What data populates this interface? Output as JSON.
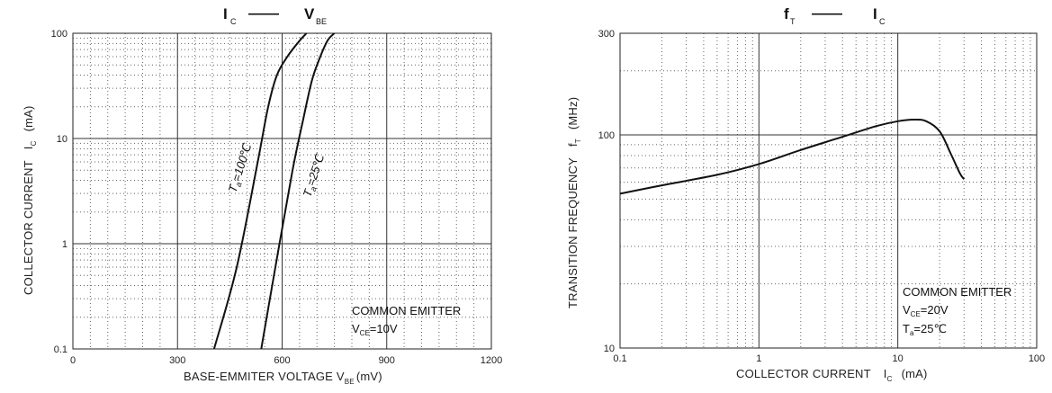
{
  "chart_data": [
    {
      "type": "line",
      "title": {
        "main": "I",
        "main_sub": "C",
        "dash": "——",
        "right": "V",
        "right_sub": "BE"
      },
      "xlabel": {
        "text": "BASE-EMMITER VOLTAGE V",
        "sub": "BE",
        "unit": "(mV)"
      },
      "ylabel": {
        "text": "COLLECTOR CURRENT",
        "sym": "I",
        "sym_sub": "C",
        "unit": "(mA)"
      },
      "xscale": "linear",
      "yscale": "log",
      "xlim": [
        0,
        1200
      ],
      "ylim": [
        0.1,
        100
      ],
      "xticks": [
        0,
        300,
        600,
        900,
        1200
      ],
      "xtick_labels": [
        "0",
        "300",
        "600",
        "900",
        "1200"
      ],
      "yticks": [
        0.1,
        1,
        10,
        100
      ],
      "ytick_labels": [
        "0.1",
        "1",
        "10",
        "100"
      ],
      "grid": true,
      "series": [
        {
          "name": "Ta=100℃",
          "label_main": "T",
          "label_sub": "a",
          "label_rest": "=100℃",
          "x": [
            405,
            470,
            530,
            560,
            585,
            615,
            650,
            670
          ],
          "y": [
            0.1,
            0.6,
            6,
            20,
            40,
            60,
            85,
            100
          ]
        },
        {
          "name": "Ta=25℃",
          "label_main": "T",
          "label_sub": "a",
          "label_rest": "=25℃",
          "x": [
            540,
            590,
            630,
            660,
            685,
            705,
            730,
            750
          ],
          "y": [
            0.1,
            0.9,
            5,
            15,
            35,
            55,
            85,
            100
          ]
        }
      ],
      "annotation": {
        "line1": "COMMON EMITTER",
        "line2_main": "V",
        "line2_sub": "CE",
        "line2_rest": "=10V"
      }
    },
    {
      "type": "line",
      "title": {
        "main": "f",
        "main_sub": "T",
        "dash": "——",
        "right": "I",
        "right_sub": "C"
      },
      "xlabel": {
        "text": "COLLECTOR CURRENT",
        "sym": "I",
        "sym_sub": "C",
        "unit": "(mA)"
      },
      "ylabel": {
        "text": "TRANSITION FREQUENCY",
        "sym": "f",
        "sym_sub": "T",
        "unit": "(MHz)"
      },
      "xscale": "log",
      "yscale": "log",
      "xlim": [
        0.1,
        100
      ],
      "ylim": [
        10,
        300
      ],
      "xticks": [
        0.1,
        1,
        10,
        100
      ],
      "xtick_labels": [
        "0.1",
        "1",
        "10",
        "100"
      ],
      "yticks": [
        10,
        100,
        300
      ],
      "ytick_labels": [
        "10",
        "100",
        "300"
      ],
      "grid": true,
      "series": [
        {
          "x": [
            0.1,
            0.2,
            0.5,
            1,
            2,
            4,
            7,
            10,
            13,
            16,
            20,
            24,
            28,
            30
          ],
          "y": [
            53,
            58,
            65,
            73,
            85,
            98,
            110,
            116,
            118,
            116,
            104,
            82,
            66,
            62
          ]
        }
      ],
      "annotation": {
        "line1": "COMMON EMITTER",
        "line2_main": "V",
        "line2_sub": "CE",
        "line2_rest": "=20V",
        "line3_main": "T",
        "line3_sub": "a",
        "line3_rest": "=25℃"
      }
    }
  ]
}
